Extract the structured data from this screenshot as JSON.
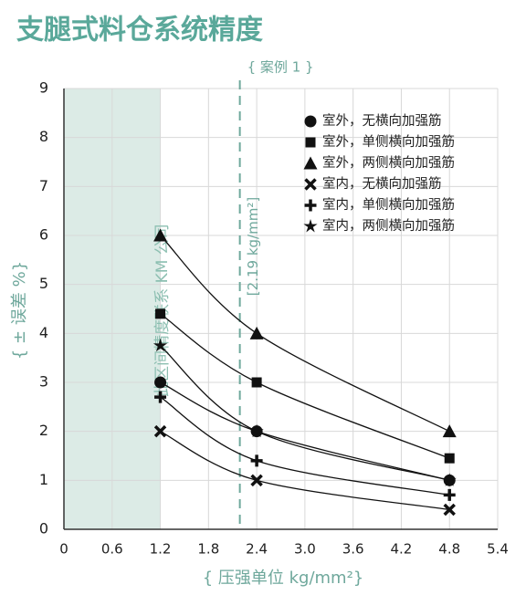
{
  "chart_data": {
    "type": "line",
    "title": "支腿式料仓系统精度",
    "x_label": "{ 压强单位 kg/mm²}",
    "y_label": "{ ± 误差 %}",
    "x": [
      1.2,
      2.4,
      4.8
    ],
    "series": [
      {
        "name": "室外，无横向加强筋",
        "marker": "circle",
        "color": "#111111",
        "values": [
          3,
          2,
          1
        ]
      },
      {
        "name": "室外，单侧横向加强筋",
        "marker": "square",
        "color": "#111111",
        "values": [
          4.4,
          3,
          1.45
        ]
      },
      {
        "name": "室外，两侧横向加强筋",
        "marker": "triangle",
        "color": "#111111",
        "values": [
          6,
          4,
          2
        ]
      },
      {
        "name": "室内，无横向加强筋",
        "marker": "cross",
        "color": "#111111",
        "values": [
          2,
          1,
          0.4
        ]
      },
      {
        "name": "室内，单侧横向加强筋",
        "marker": "plus",
        "color": "#111111",
        "values": [
          2.7,
          1.4,
          0.7
        ]
      },
      {
        "name": "室内，两侧横向加强筋",
        "marker": "star",
        "color": "#111111",
        "values": [
          3.75,
          2,
          1
        ]
      }
    ],
    "xlim": [
      0,
      5.4
    ],
    "xticks": [
      0,
      0.6,
      1.2,
      1.8,
      2.4,
      {
        "value": 3,
        "label": "3.0"
      },
      3.6,
      4.2,
      4.8,
      5.4
    ],
    "ylim": [
      0,
      9
    ],
    "yticks": [
      0,
      1,
      2,
      3,
      4,
      5,
      6,
      7,
      8,
      9
    ],
    "grid": true,
    "legend": "upper right",
    "shaded_region": {
      "x": [
        0,
        1.2
      ],
      "label": "此区间精度联系 KM 公司",
      "color": "#dcebe6"
    },
    "reference_line": {
      "x": 2.19,
      "label": "{ 案例 1 }",
      "value_label": "[2.19 kg/mm²]",
      "color": "#6fa89c"
    }
  }
}
